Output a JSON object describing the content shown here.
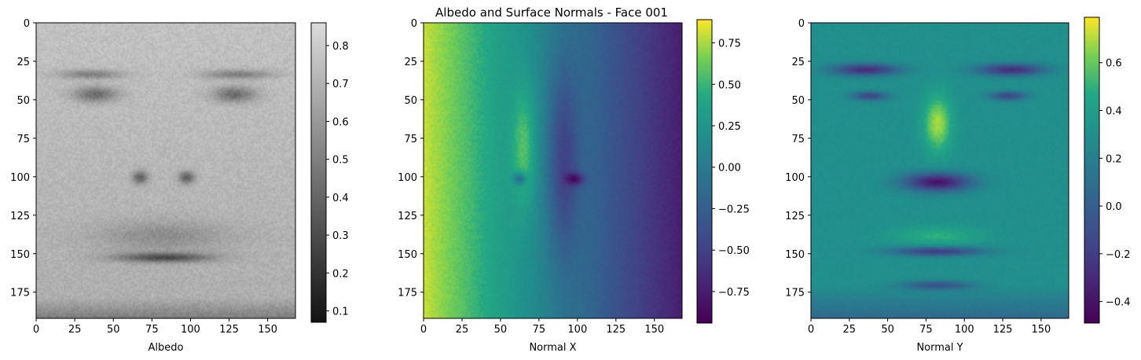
{
  "chart_data": {
    "type": "heatmap",
    "title": "Albedo and Surface Normals - Face 001",
    "image_size": {
      "rows": 192,
      "cols": 168
    },
    "panels": [
      {
        "xlabel": "Albedo",
        "colormap": "gray",
        "xlim": [
          0,
          168
        ],
        "ylim": [
          192,
          0
        ],
        "xticks": [
          "0",
          "25",
          "50",
          "75",
          "100",
          "125",
          "150"
        ],
        "yticks": [
          "0",
          "25",
          "50",
          "75",
          "100",
          "125",
          "150",
          "175"
        ],
        "colorbar": {
          "range": [
            0.07,
            0.86
          ],
          "ticks": [
            "0.1",
            "0.2",
            "0.3",
            "0.4",
            "0.5",
            "0.6",
            "0.7",
            "0.8"
          ]
        },
        "value_range": [
          0.07,
          0.86
        ]
      },
      {
        "xlabel": "Normal X",
        "colormap": "viridis",
        "xlim": [
          0,
          168
        ],
        "ylim": [
          192,
          0
        ],
        "xticks": [
          "0",
          "25",
          "50",
          "75",
          "100",
          "125",
          "150"
        ],
        "yticks": [
          "0",
          "25",
          "50",
          "75",
          "100",
          "125",
          "150",
          "175"
        ],
        "colorbar": {
          "range": [
            -0.94,
            0.89
          ],
          "ticks": [
            "−0.75",
            "−0.50",
            "−0.25",
            "0.00",
            "0.25",
            "0.50",
            "0.75"
          ]
        },
        "value_range": [
          -0.94,
          0.89
        ]
      },
      {
        "xlabel": "Normal Y",
        "colormap": "viridis",
        "xlim": [
          0,
          168
        ],
        "ylim": [
          192,
          0
        ],
        "xticks": [
          "0",
          "25",
          "50",
          "75",
          "100",
          "125",
          "150"
        ],
        "yticks": [
          "0",
          "25",
          "50",
          "75",
          "100",
          "125",
          "150",
          "175"
        ],
        "colorbar": {
          "range": [
            -0.49,
            0.79
          ],
          "ticks": [
            "−0.4",
            "−0.2",
            "0.0",
            "0.2",
            "0.4",
            "0.6"
          ]
        },
        "value_range": [
          -0.49,
          0.79
        ]
      }
    ]
  }
}
